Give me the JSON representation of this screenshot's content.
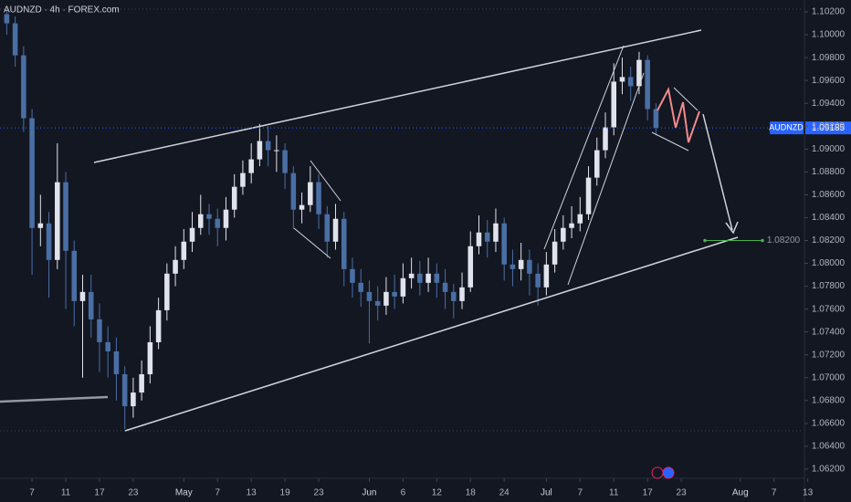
{
  "chart_data": {
    "type": "candlestick",
    "title": "AUDNZD · 4h · FOREX.com",
    "symbol": "AUDNZD",
    "last_price": {
      "value": 1.09185,
      "label": "1.09185"
    },
    "target": {
      "value": 1.082,
      "label": "1.08200"
    },
    "up_color": "#e0e3eb",
    "down_color": "#4a6fa5",
    "xlim": [
      -3.8,
      91.5
    ],
    "ylim": [
      1.06136,
      1.10304
    ],
    "xticks": [
      {
        "value": 0,
        "label": "7"
      },
      {
        "value": 4,
        "label": "11"
      },
      {
        "value": 8,
        "label": "17"
      },
      {
        "value": 12,
        "label": "23"
      },
      {
        "value": 18,
        "label": "May"
      },
      {
        "value": 22,
        "label": "7"
      },
      {
        "value": 26,
        "label": "13"
      },
      {
        "value": 30,
        "label": "19"
      },
      {
        "value": 34,
        "label": "23"
      },
      {
        "value": 40,
        "label": "Jun"
      },
      {
        "value": 44,
        "label": "6"
      },
      {
        "value": 48,
        "label": "12"
      },
      {
        "value": 52,
        "label": "18"
      },
      {
        "value": 56,
        "label": "24"
      },
      {
        "value": 61,
        "label": "Jul"
      },
      {
        "value": 65,
        "label": "7"
      },
      {
        "value": 69,
        "label": "11"
      },
      {
        "value": 73,
        "label": "17"
      },
      {
        "value": 77,
        "label": "23"
      },
      {
        "value": 84,
        "label": "Aug"
      },
      {
        "value": 88,
        "label": "7"
      },
      {
        "value": 92,
        "label": "13"
      }
    ],
    "yticks": [
      {
        "value": 1.102,
        "label": "1.10200"
      },
      {
        "value": 1.1,
        "label": "1.10000"
      },
      {
        "value": 1.098,
        "label": "1.09800"
      },
      {
        "value": 1.096,
        "label": "1.09600"
      },
      {
        "value": 1.094,
        "label": "1.09400"
      },
      {
        "value": 1.092,
        "label": "1.09200"
      },
      {
        "value": 1.09,
        "label": "1.09000"
      },
      {
        "value": 1.088,
        "label": "1.08800"
      },
      {
        "value": 1.086,
        "label": "1.08600"
      },
      {
        "value": 1.084,
        "label": "1.08400"
      },
      {
        "value": 1.082,
        "label": "1.08200"
      },
      {
        "value": 1.08,
        "label": "1.08000"
      },
      {
        "value": 1.078,
        "label": "1.07800"
      },
      {
        "value": 1.076,
        "label": "1.07600"
      },
      {
        "value": 1.074,
        "label": "1.07400"
      },
      {
        "value": 1.072,
        "label": "1.07200"
      },
      {
        "value": 1.07,
        "label": "1.07000"
      },
      {
        "value": 1.068,
        "label": "1.06800"
      },
      {
        "value": 1.066,
        "label": "1.06600"
      },
      {
        "value": 1.064,
        "label": "1.06400"
      },
      {
        "value": 1.062,
        "label": "1.06200"
      }
    ],
    "x": [
      -3,
      -2,
      -1,
      0,
      1,
      2,
      3,
      4,
      5,
      6,
      7,
      8,
      9,
      10,
      11,
      12,
      13,
      14,
      15,
      16,
      17,
      18,
      19,
      20,
      21,
      22,
      23,
      24,
      25,
      26,
      27,
      28,
      29,
      30,
      31,
      32,
      33,
      34,
      35,
      36,
      37,
      38,
      39,
      40,
      41,
      42,
      43,
      44,
      45,
      46,
      47,
      48,
      49,
      50,
      51,
      52,
      53,
      54,
      55,
      56,
      57,
      58,
      59,
      60,
      61,
      62,
      63,
      64,
      65,
      66,
      67,
      68,
      69,
      70,
      71,
      72,
      73,
      74
    ],
    "open": [
      1.1018,
      1.101,
      1.0982,
      1.0927,
      1.0831,
      1.0835,
      1.0803,
      1.0871,
      1.0811,
      1.0767,
      1.0775,
      1.0751,
      1.0731,
      1.0723,
      1.0703,
      1.0675,
      1.0687,
      1.0703,
      1.0731,
      1.0759,
      1.0791,
      1.0803,
      1.0819,
      1.0831,
      1.0843,
      1.0839,
      1.0831,
      1.0847,
      1.0867,
      1.0879,
      1.0891,
      1.0907,
      1.0899,
      1.0899,
      1.0879,
      1.0847,
      1.0851,
      1.0871,
      1.0843,
      1.0819,
      1.0839,
      1.0795,
      1.0783,
      1.0775,
      1.0767,
      1.0763,
      1.0775,
      1.0771,
      1.0787,
      1.0791,
      1.0783,
      1.0791,
      1.0783,
      1.0775,
      1.0767,
      1.0779,
      1.0815,
      1.0827,
      1.0819,
      1.0835,
      1.0799,
      1.0795,
      1.0803,
      1.0791,
      1.0779,
      1.0799,
      1.0819,
      1.0831,
      1.0835,
      1.0843,
      1.0875,
      1.0899,
      1.0919,
      1.0959,
      1.0963,
      1.0955,
      1.0978,
      1.0935
    ],
    "high": [
      1.1022,
      1.1016,
      1.099,
      1.0935,
      1.086,
      1.0845,
      1.0905,
      1.088,
      1.082,
      1.079,
      1.079,
      1.0765,
      1.0745,
      1.0735,
      1.071,
      1.07,
      1.0715,
      1.0745,
      1.077,
      1.08,
      1.0815,
      1.083,
      1.0845,
      1.086,
      1.0852,
      1.0848,
      1.0858,
      1.0878,
      1.089,
      1.0905,
      1.0922,
      1.092,
      1.0912,
      1.0905,
      1.0885,
      1.0862,
      1.0885,
      1.0878,
      1.085,
      1.0852,
      1.0845,
      1.0805,
      1.0795,
      1.0785,
      1.078,
      1.0788,
      1.079,
      1.08,
      1.0805,
      1.0802,
      1.0805,
      1.08,
      1.0795,
      1.0782,
      1.0792,
      1.0828,
      1.0842,
      1.0838,
      1.0848,
      1.084,
      1.0812,
      1.0818,
      1.0812,
      1.08,
      1.081,
      1.083,
      1.0842,
      1.085,
      1.0858,
      1.0885,
      1.091,
      1.0932,
      1.0975,
      1.098,
      1.0972,
      1.0985,
      1.0982,
      1.094
    ],
    "low": [
      1.1,
      1.0972,
      1.0915,
      1.079,
      1.0815,
      1.077,
      1.0795,
      1.076,
      1.0745,
      1.07,
      1.0735,
      1.0705,
      1.07,
      1.068,
      1.0655,
      1.0665,
      1.068,
      1.0695,
      1.0725,
      1.075,
      1.078,
      1.0795,
      1.081,
      1.0825,
      1.0825,
      1.0815,
      1.082,
      1.084,
      1.086,
      1.087,
      1.0885,
      1.0885,
      1.088,
      1.0865,
      1.083,
      1.0835,
      1.0845,
      1.083,
      1.0805,
      1.0812,
      1.078,
      1.077,
      1.0762,
      1.073,
      1.075,
      1.0755,
      1.076,
      1.0765,
      1.0778,
      1.0772,
      1.0775,
      1.077,
      1.076,
      1.0752,
      1.076,
      1.0775,
      1.0808,
      1.0805,
      1.081,
      1.0785,
      1.078,
      1.0785,
      1.0772,
      1.0763,
      1.0772,
      1.0792,
      1.0812,
      1.0822,
      1.0828,
      1.0838,
      1.0868,
      1.0892,
      1.0912,
      1.0948,
      1.0942,
      1.0948,
      1.0925,
      1.0912
    ],
    "close": [
      1.101,
      1.0982,
      1.0927,
      1.0831,
      1.0835,
      1.0803,
      1.0871,
      1.0811,
      1.0767,
      1.0775,
      1.0751,
      1.0731,
      1.0723,
      1.0703,
      1.0675,
      1.0687,
      1.0703,
      1.0731,
      1.0759,
      1.0791,
      1.0803,
      1.0819,
      1.0831,
      1.0843,
      1.0839,
      1.0831,
      1.0847,
      1.0867,
      1.0879,
      1.0891,
      1.0907,
      1.0899,
      1.0899,
      1.0879,
      1.0847,
      1.0851,
      1.0871,
      1.0843,
      1.0819,
      1.0839,
      1.0795,
      1.0783,
      1.0775,
      1.0767,
      1.0763,
      1.0775,
      1.0771,
      1.0787,
      1.0791,
      1.0783,
      1.0791,
      1.0783,
      1.0775,
      1.0767,
      1.0779,
      1.0815,
      1.0827,
      1.0819,
      1.0835,
      1.0799,
      1.0795,
      1.0803,
      1.0791,
      1.0779,
      1.0799,
      1.0819,
      1.0831,
      1.0835,
      1.0843,
      1.0875,
      1.0899,
      1.0919,
      1.0959,
      1.0963,
      1.0955,
      1.0978,
      1.0935,
      1.09185
    ]
  }
}
